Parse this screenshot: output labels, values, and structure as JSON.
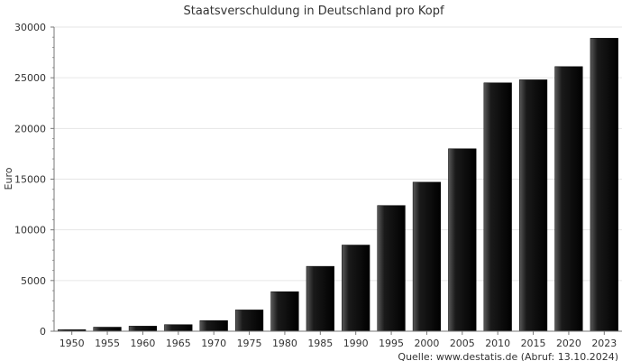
{
  "chart_data": {
    "type": "bar",
    "title": "Staatsverschuldung in Deutschland pro Kopf",
    "ylabel": "Euro",
    "xlabel": "",
    "ylim": [
      0,
      30000
    ],
    "yticks": [
      "0",
      "5000",
      "10000",
      "15000",
      "20000",
      "25000",
      "30000"
    ],
    "grid": "horizontal",
    "categories": [
      "1950",
      "1955",
      "1960",
      "1965",
      "1970",
      "1975",
      "1980",
      "1985",
      "1990",
      "1995",
      "2000",
      "2005",
      "2010",
      "2015",
      "2020",
      "2023"
    ],
    "values": [
      150,
      400,
      500,
      650,
      1050,
      2100,
      3900,
      6400,
      8500,
      12400,
      14700,
      18000,
      24500,
      24800,
      26100,
      28900
    ],
    "bar_color": "#000000",
    "source": "Quelle: www.destatis.de (Abruf: 13.10.2024)"
  }
}
